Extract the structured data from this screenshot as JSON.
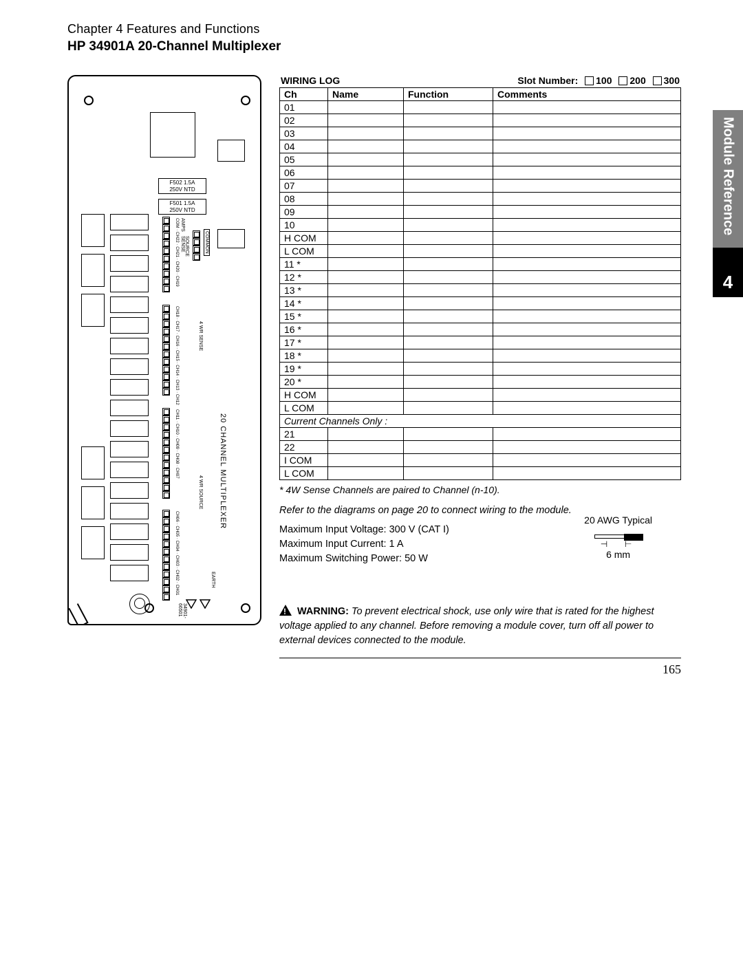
{
  "header": {
    "chapter": "Chapter 4  Features and Functions",
    "title": "HP 34901A  20-Channel Multiplexer"
  },
  "sidetab": {
    "label": "Module Reference",
    "chapter_num": "4",
    "gray_bg": "#808080",
    "black_bg": "#000000",
    "text_color": "#ffffff"
  },
  "pcb": {
    "fuse1": "F502 1.5A\n250V NTD",
    "fuse2": "F501 1.5A\n250V NTD",
    "title_v": "20  CHANNEL  MULTIPLEXER",
    "sense_label": "4 WR SENSE",
    "source_label": "4 WR SOURCE",
    "earth": "EARTH",
    "partno": "34901-66501",
    "common": "COMMON",
    "amps": "AMPS",
    "sense": "SENSE",
    "source": "SOURCE",
    "com": "COM",
    "hl": "H  L"
  },
  "wiring": {
    "log_label": "WIRING LOG",
    "slot_label": "Slot Number:",
    "slot_100": "100",
    "slot_200": "200",
    "slot_300": "300",
    "columns": {
      "ch": "Ch",
      "name": "Name",
      "func": "Function",
      "comments": "Comments"
    },
    "rows": [
      "01",
      "02",
      "03",
      "04",
      "05",
      "06",
      "07",
      "08",
      "09",
      "10",
      "H COM",
      "L COM",
      "11 *",
      "12 *",
      "13 *",
      "14 *",
      "15 *",
      "16 *",
      "17 *",
      "18 *",
      "19 *",
      "20 *",
      "H COM",
      "L COM"
    ],
    "section_label": "Current Channels Only :",
    "rows2": [
      "21",
      "22",
      "I COM",
      "L COM"
    ],
    "footnote": "* 4W Sense Channels are paired to Channel (n-10).",
    "refer": "Refer to the diagrams on page 20 to connect wiring to the module.",
    "spec1": "Maximum Input Voltage:  300 V  (CAT I)",
    "spec2": "Maximum Input Current:  1 A",
    "spec3": "Maximum Switching Power:  50 W",
    "awg": "20 AWG Typical",
    "awg_len": "6 mm",
    "warn_label": "WARNING:",
    "warn_text": "To prevent electrical shock, use only wire that is rated for the highest voltage applied to any channel. Before removing a module cover, turn off all power to external devices connected to the module."
  },
  "page_number": "165",
  "colors": {
    "text": "#000000",
    "bg": "#ffffff",
    "rule": "#000000"
  }
}
